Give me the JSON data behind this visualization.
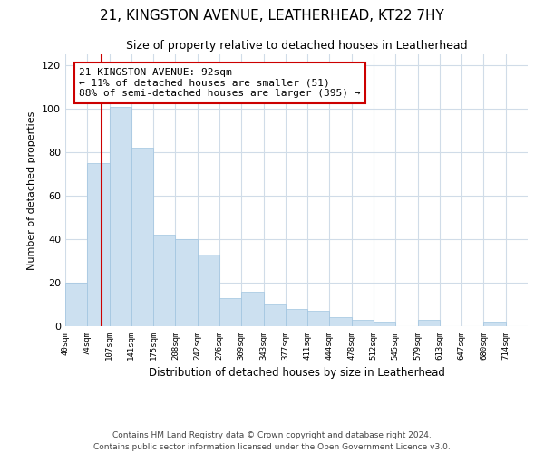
{
  "title": "21, KINGSTON AVENUE, LEATHERHEAD, KT22 7HY",
  "subtitle": "Size of property relative to detached houses in Leatherhead",
  "xlabel": "Distribution of detached houses by size in Leatherhead",
  "ylabel": "Number of detached properties",
  "bin_labels": [
    "40sqm",
    "74sqm",
    "107sqm",
    "141sqm",
    "175sqm",
    "208sqm",
    "242sqm",
    "276sqm",
    "309sqm",
    "343sqm",
    "377sqm",
    "411sqm",
    "444sqm",
    "478sqm",
    "512sqm",
    "545sqm",
    "579sqm",
    "613sqm",
    "647sqm",
    "680sqm",
    "714sqm"
  ],
  "bar_heights": [
    20,
    75,
    101,
    82,
    42,
    40,
    33,
    13,
    16,
    10,
    8,
    7,
    4,
    3,
    2,
    0,
    3,
    0,
    0,
    2,
    0
  ],
  "bar_color": "#cce0f0",
  "bar_edge_color": "#a0c4e0",
  "property_line_x": 1.65,
  "annotation_title": "21 KINGSTON AVENUE: 92sqm",
  "annotation_line1": "← 11% of detached houses are smaller (51)",
  "annotation_line2": "88% of semi-detached houses are larger (395) →",
  "vline_color": "#cc0000",
  "annotation_box_edge": "#cc0000",
  "ylim": [
    0,
    125
  ],
  "yticks": [
    0,
    20,
    40,
    60,
    80,
    100,
    120
  ],
  "footnote1": "Contains HM Land Registry data © Crown copyright and database right 2024.",
  "footnote2": "Contains public sector information licensed under the Open Government Licence v3.0.",
  "background_color": "#ffffff",
  "grid_color": "#d0dce8"
}
